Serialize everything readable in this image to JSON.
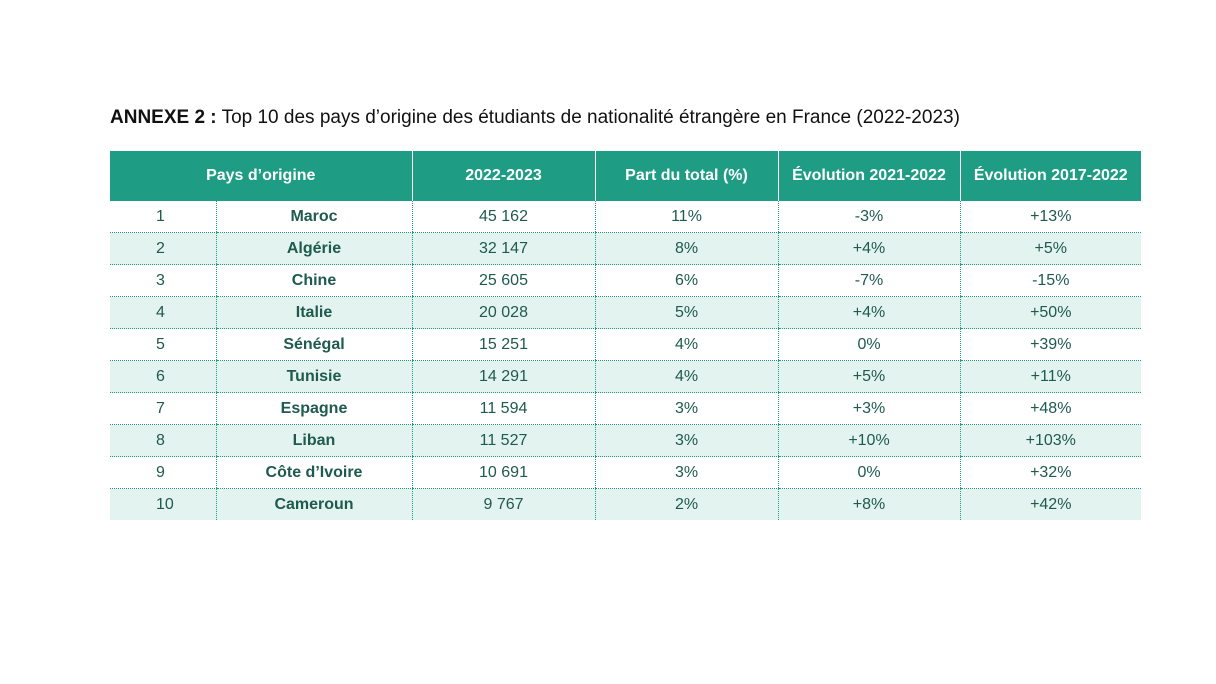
{
  "title": {
    "prefix": "ANNEXE 2 :",
    "text": " Top 10 des pays d’origine des étudiants de nationalité étrangère en France (2022-2023)"
  },
  "table": {
    "headers": {
      "country": "Pays d’origine",
      "count": "2022-2023",
      "share": "Part du total (%)",
      "evolution_1": "Évolution 2021-2022",
      "evolution_2": "Évolution 2017-2022"
    },
    "rows": [
      {
        "rank": "1",
        "country": "Maroc",
        "count": "45 162",
        "share": "11%",
        "evolution_1": "-3%",
        "evolution_2": "+13%"
      },
      {
        "rank": "2",
        "country": "Algérie",
        "count": "32 147",
        "share": "8%",
        "evolution_1": "+4%",
        "evolution_2": "+5%"
      },
      {
        "rank": "3",
        "country": "Chine",
        "count": "25 605",
        "share": "6%",
        "evolution_1": "-7%",
        "evolution_2": "-15%"
      },
      {
        "rank": "4",
        "country": "Italie",
        "count": "20 028",
        "share": "5%",
        "evolution_1": "+4%",
        "evolution_2": "+50%"
      },
      {
        "rank": "5",
        "country": "Sénégal",
        "count": "15 251",
        "share": "4%",
        "evolution_1": "0%",
        "evolution_2": "+39%"
      },
      {
        "rank": "6",
        "country": "Tunisie",
        "count": "14 291",
        "share": "4%",
        "evolution_1": "+5%",
        "evolution_2": "+11%"
      },
      {
        "rank": "7",
        "country": "Espagne",
        "count": "11 594",
        "share": "3%",
        "evolution_1": "+3%",
        "evolution_2": "+48%"
      },
      {
        "rank": "8",
        "country": "Liban",
        "count": "11 527",
        "share": "3%",
        "evolution_1": "+10%",
        "evolution_2": "+103%"
      },
      {
        "rank": "9",
        "country": "Côte d’Ivoire",
        "count": "10 691",
        "share": "3%",
        "evolution_1": "0%",
        "evolution_2": "+32%"
      },
      {
        "rank": "10",
        "country": "Cameroun",
        "count": "9 767",
        "share": "2%",
        "evolution_1": "+8%",
        "evolution_2": "+42%"
      }
    ]
  },
  "colors": {
    "header_background": "#1f9d84",
    "header_text": "#ffffff",
    "alt_row_background": "#e3f3ef",
    "cell_text": "#1e5a4d"
  }
}
